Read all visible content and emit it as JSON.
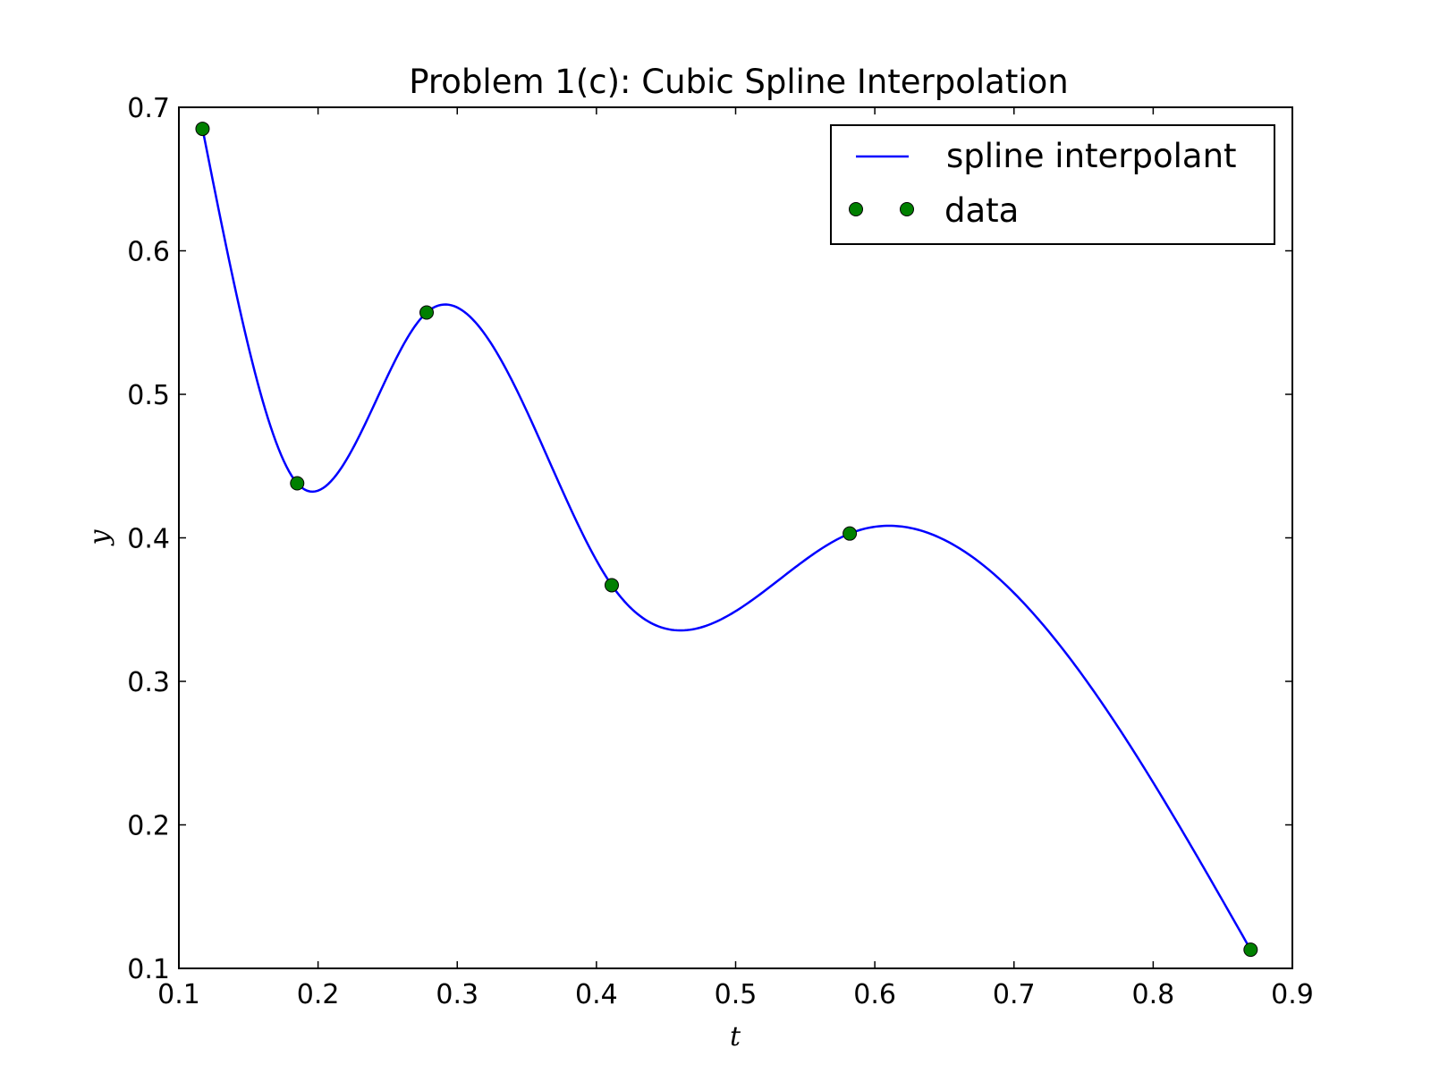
{
  "chart_data": {
    "type": "line",
    "title": "Problem 1(c): Cubic Spline Interpolation",
    "xlabel": "t",
    "ylabel": "y",
    "xlim": [
      0.1,
      0.9
    ],
    "ylim": [
      0.1,
      0.7
    ],
    "x_ticks": [
      0.1,
      0.2,
      0.3,
      0.4,
      0.5,
      0.6,
      0.7,
      0.8,
      0.9
    ],
    "x_tick_labels": [
      "0.1",
      "0.2",
      "0.3",
      "0.4",
      "0.5",
      "0.6",
      "0.7",
      "0.8",
      "0.9"
    ],
    "y_ticks": [
      0.1,
      0.2,
      0.3,
      0.4,
      0.5,
      0.6,
      0.7
    ],
    "y_tick_labels": [
      "0.1",
      "0.2",
      "0.3",
      "0.4",
      "0.5",
      "0.6",
      "0.7"
    ],
    "grid": false,
    "legend_position": "top-right",
    "series": [
      {
        "name": "spline interpolant",
        "kind": "line",
        "color": "#0000ff",
        "x": [
          0.117,
          0.185,
          0.278,
          0.411,
          0.582,
          0.87
        ],
        "y": [
          0.685,
          0.438,
          0.557,
          0.367,
          0.403,
          0.113
        ]
      },
      {
        "name": "data",
        "kind": "markers",
        "color": "#008000",
        "x": [
          0.117,
          0.185,
          0.278,
          0.411,
          0.582,
          0.87
        ],
        "y": [
          0.685,
          0.438,
          0.557,
          0.367,
          0.403,
          0.113
        ]
      }
    ]
  }
}
